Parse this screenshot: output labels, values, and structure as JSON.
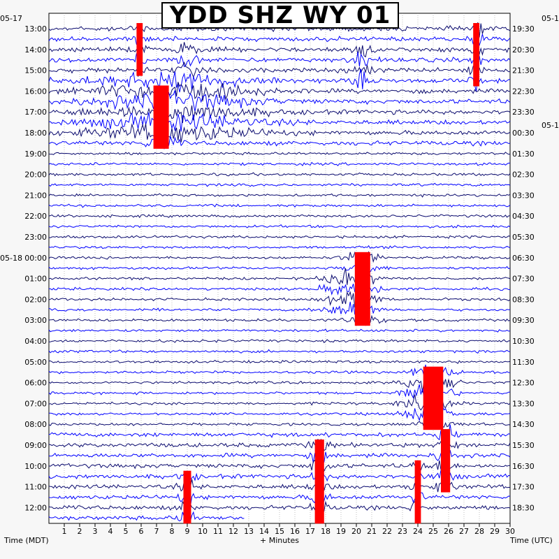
{
  "chart_data": {
    "type": "helicorder",
    "title": "YDD SHZ WY 01",
    "xlabel": "+ Minutes",
    "ylabel_left": "Time (MDT)",
    "ylabel_right": "Time (UTC)",
    "x_ticks": [
      "1",
      "2",
      "3",
      "4",
      "5",
      "6",
      "7",
      "8",
      "9",
      "10",
      "11",
      "12",
      "13",
      "14",
      "15",
      "16",
      "17",
      "18",
      "19",
      "20",
      "21",
      "22",
      "23",
      "24",
      "25",
      "26",
      "27",
      "28",
      "29",
      "30"
    ],
    "xlim": [
      0,
      30
    ],
    "left_labels": [
      {
        "row": 0,
        "text": "13:00"
      },
      {
        "row": 2,
        "text": "14:00"
      },
      {
        "row": 4,
        "text": "15:00"
      },
      {
        "row": 6,
        "text": "16:00"
      },
      {
        "row": 8,
        "text": "17:00"
      },
      {
        "row": 10,
        "text": "18:00"
      },
      {
        "row": 12,
        "text": "19:00"
      },
      {
        "row": 14,
        "text": "20:00"
      },
      {
        "row": 16,
        "text": "21:00"
      },
      {
        "row": 18,
        "text": "22:00"
      },
      {
        "row": 20,
        "text": "23:00"
      },
      {
        "row": 22,
        "text": "00:00"
      },
      {
        "row": 24,
        "text": "01:00"
      },
      {
        "row": 26,
        "text": "02:00"
      },
      {
        "row": 28,
        "text": "03:00"
      },
      {
        "row": 30,
        "text": "04:00"
      },
      {
        "row": 32,
        "text": "05:00"
      },
      {
        "row": 34,
        "text": "06:00"
      },
      {
        "row": 36,
        "text": "07:00"
      },
      {
        "row": 38,
        "text": "08:00"
      },
      {
        "row": 40,
        "text": "09:00"
      },
      {
        "row": 42,
        "text": "10:00"
      },
      {
        "row": 44,
        "text": "11:00"
      },
      {
        "row": 46,
        "text": "12:00"
      }
    ],
    "right_labels": [
      {
        "row": 0,
        "text": "19:30"
      },
      {
        "row": 2,
        "text": "20:30"
      },
      {
        "row": 4,
        "text": "21:30"
      },
      {
        "row": 6,
        "text": "22:30"
      },
      {
        "row": 8,
        "text": "23:30"
      },
      {
        "row": 10,
        "text": "00:30"
      },
      {
        "row": 12,
        "text": "01:30"
      },
      {
        "row": 14,
        "text": "02:30"
      },
      {
        "row": 16,
        "text": "03:30"
      },
      {
        "row": 18,
        "text": "04:30"
      },
      {
        "row": 20,
        "text": "05:30"
      },
      {
        "row": 22,
        "text": "06:30"
      },
      {
        "row": 24,
        "text": "07:30"
      },
      {
        "row": 26,
        "text": "08:30"
      },
      {
        "row": 28,
        "text": "09:30"
      },
      {
        "row": 30,
        "text": "10:30"
      },
      {
        "row": 32,
        "text": "11:30"
      },
      {
        "row": 34,
        "text": "12:30"
      },
      {
        "row": 36,
        "text": "13:30"
      },
      {
        "row": 38,
        "text": "14:30"
      },
      {
        "row": 40,
        "text": "15:30"
      },
      {
        "row": 42,
        "text": "16:30"
      },
      {
        "row": 44,
        "text": "17:30"
      },
      {
        "row": 46,
        "text": "18:30"
      }
    ],
    "date_labels": [
      {
        "side": "left",
        "row": -1,
        "text": "05-17"
      },
      {
        "side": "left",
        "row": 22,
        "text": "05-18"
      },
      {
        "side": "right",
        "row": -1,
        "text": "05-1"
      },
      {
        "side": "right",
        "row": 9,
        "text": "05-1"
      }
    ],
    "row_count": 48,
    "row_minutes": 30,
    "last_row_end_minute": 12.7,
    "trace_colors": [
      "#0a0a6e",
      "#0000ff"
    ],
    "clip_color": "#ff0000",
    "events": [
      {
        "rows": [
          0,
          4
        ],
        "minute": 5.9,
        "width": 0.4,
        "clipped": true
      },
      {
        "rows": [
          2,
          4
        ],
        "minute": 9.0,
        "width": 0.6,
        "clipped": false
      },
      {
        "rows": [
          6,
          11
        ],
        "minute": 7.3,
        "width": 1.0,
        "clipped": true
      },
      {
        "rows": [
          5,
          10
        ],
        "minute": 8.0,
        "width": 5.0,
        "clipped": false
      },
      {
        "rows": [
          0,
          5
        ],
        "minute": 27.8,
        "width": 0.4,
        "clipped": true
      },
      {
        "rows": [
          2,
          5
        ],
        "minute": 20.3,
        "width": 0.6,
        "clipped": false
      },
      {
        "rows": [
          22,
          28
        ],
        "minute": 20.4,
        "width": 1.0,
        "clipped": true
      },
      {
        "rows": [
          24,
          27
        ],
        "minute": 19.5,
        "width": 1.5,
        "clipped": false
      },
      {
        "rows": [
          33,
          38
        ],
        "minute": 25.0,
        "width": 1.3,
        "clipped": true
      },
      {
        "rows": [
          34,
          37
        ],
        "minute": 24.2,
        "width": 1.2,
        "clipped": false
      },
      {
        "rows": [
          39,
          44
        ],
        "minute": 25.8,
        "width": 0.6,
        "clipped": true
      },
      {
        "rows": [
          40,
          47
        ],
        "minute": 17.6,
        "width": 0.6,
        "clipped": true
      },
      {
        "rows": [
          43,
          47
        ],
        "minute": 9.0,
        "width": 0.5,
        "clipped": true
      },
      {
        "rows": [
          42,
          47
        ],
        "minute": 24.0,
        "width": 0.4,
        "clipped": true
      }
    ]
  }
}
